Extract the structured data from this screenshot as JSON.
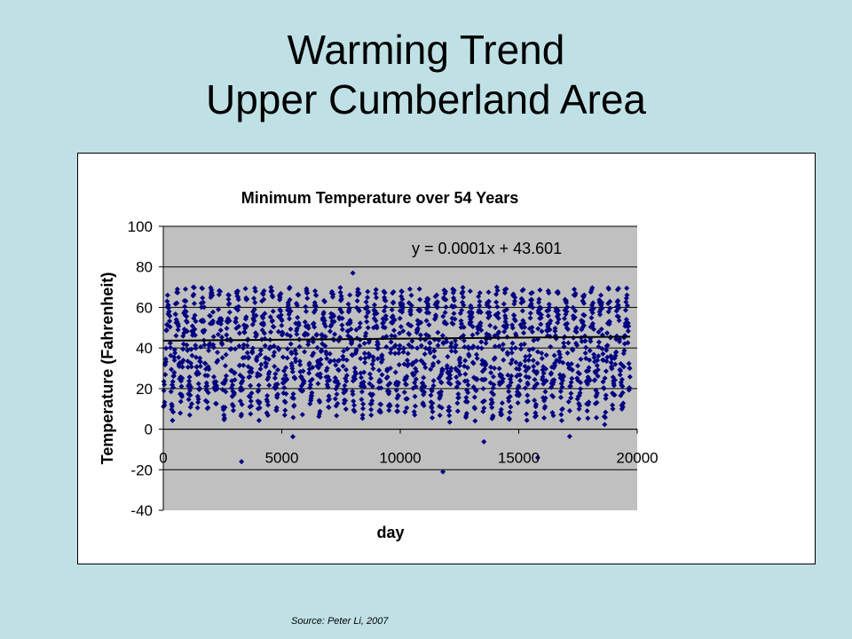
{
  "slide": {
    "title_line1": "Warming Trend",
    "title_line2": "Upper Cumberland Area",
    "source": "Source: Peter Li, 2007"
  },
  "colors": {
    "background": "#bfe1e6",
    "plot_area": "#c0c0c0",
    "marker": "#000080",
    "trendline": "#000000"
  },
  "chart_data": {
    "type": "scatter",
    "title": "Minimum Temperature over 54 Years",
    "xlabel": "day",
    "ylabel": "Temperature (Fahrenheit)",
    "xlim": [
      0,
      20000
    ],
    "ylim": [
      -40,
      100
    ],
    "xticks": [
      0,
      5000,
      10000,
      15000,
      20000
    ],
    "yticks": [
      -40,
      -20,
      0,
      20,
      40,
      60,
      80,
      100
    ],
    "grid": "horizontal major gridlines",
    "legend": "none",
    "marker": "diamond",
    "n_points_approx": 19700,
    "series": [
      {
        "description": "daily minimum temperature, seasonal oscillation with annual period ~365 days",
        "typical_range": [
          10,
          68
        ],
        "extremes": [
          {
            "x": 8000,
            "y": 77
          },
          {
            "x": 11800,
            "y": -21
          },
          {
            "x": 3300,
            "y": -16
          },
          {
            "x": 15800,
            "y": -14
          }
        ]
      }
    ],
    "trendline": {
      "equation_label": "y = 0.0001x + 43.601",
      "slope": 0.0001,
      "intercept": 43.601
    }
  }
}
